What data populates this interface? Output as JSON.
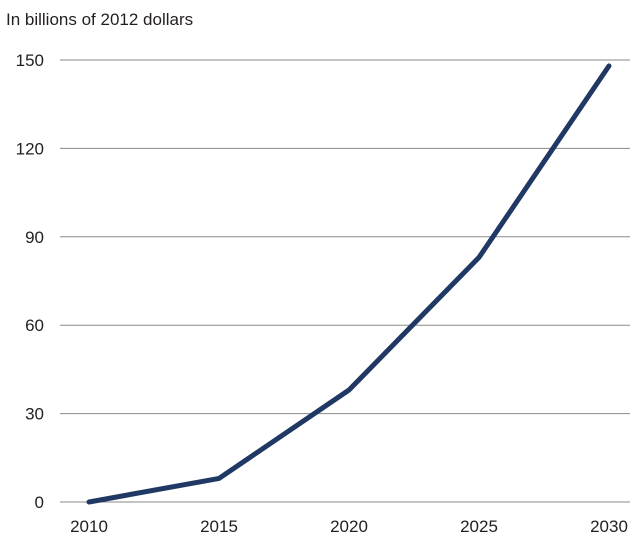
{
  "chart_data": {
    "type": "line",
    "title": "",
    "unit_label": "In billions of 2012 dollars",
    "xlabel": "",
    "ylabel": "",
    "x": [
      2010,
      2015,
      2020,
      2025,
      2030
    ],
    "x_ticks": [
      "2010",
      "2015",
      "2020",
      "2025",
      "2030"
    ],
    "y_ticks": [
      "0",
      "30",
      "60",
      "90",
      "120",
      "150"
    ],
    "ylim": [
      0,
      150
    ],
    "xlim": [
      2010,
      2030
    ],
    "grid": "horizontal",
    "series": [
      {
        "values": [
          0,
          8,
          38,
          83,
          148
        ],
        "color": "#1f3864"
      }
    ]
  }
}
